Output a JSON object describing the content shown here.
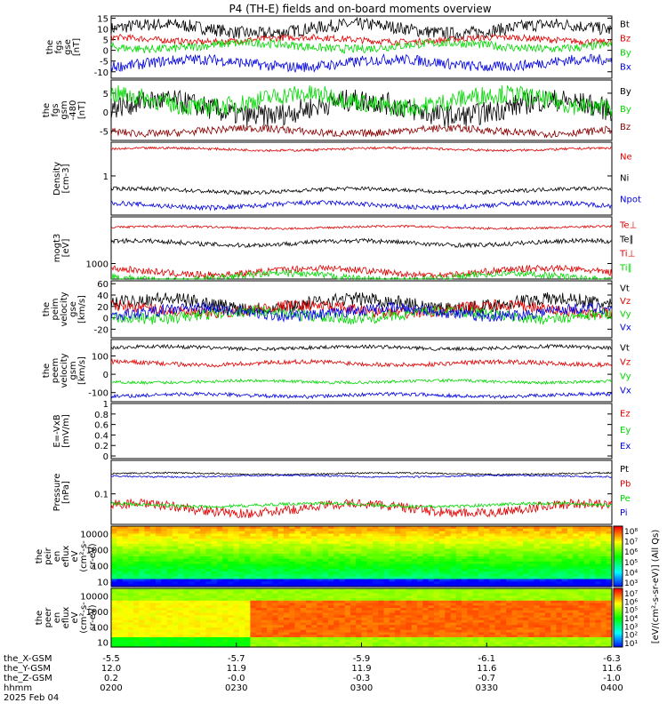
{
  "title": "P4 (TH-E) fields and on-board moments overview",
  "colors": {
    "black": "#000000",
    "red": "#e00000",
    "green": "#00d800",
    "blue": "#0000e0",
    "darkred": "#8b0000"
  },
  "chart_data": [
    {
      "id": "p1",
      "type": "line",
      "ylabel": [
        "the",
        "fgs",
        "gse",
        "[nT]"
      ],
      "ylim": [
        -13,
        16
      ],
      "yticks": [
        15,
        10,
        5,
        0,
        -5,
        -10
      ],
      "series": [
        {
          "name": "Bt",
          "color": "black",
          "level": 10,
          "amp": 3
        },
        {
          "name": "Bz",
          "color": "red",
          "level": 5,
          "amp": 1.5
        },
        {
          "name": "By",
          "color": "green",
          "level": 2,
          "amp": 2
        },
        {
          "name": "Bx",
          "color": "blue",
          "level": -6,
          "amp": 2.5
        }
      ]
    },
    {
      "id": "p2",
      "type": "line",
      "ylabel": [
        "the",
        "fgs",
        "gsm",
        "-480",
        "[nT]"
      ],
      "ylim": [
        -7.5,
        8.5
      ],
      "yticks": [
        5,
        0,
        -5
      ],
      "series": [
        {
          "name": "By",
          "color": "black",
          "level": 1,
          "amp": 3
        },
        {
          "name": "By",
          "color": "green",
          "level": 3,
          "amp": 2.5
        },
        {
          "name": "Bz",
          "color": "darkred",
          "level": -5,
          "amp": 1
        }
      ]
    },
    {
      "id": "p3",
      "type": "line",
      "ylabel": [
        "Density",
        "[cm-3]"
      ],
      "ylim": [
        0.2,
        4
      ],
      "log": true,
      "yticks": [
        1
      ],
      "series": [
        {
          "name": "Ne",
          "color": "red",
          "level": 3,
          "amp": 0.05
        },
        {
          "name": "Ni",
          "color": "black",
          "level": 0.55,
          "amp": 0.08
        },
        {
          "name": "Npot",
          "color": "blue",
          "level": 0.3,
          "amp": 0.1
        }
      ]
    },
    {
      "id": "p4",
      "type": "line",
      "ylabel": [
        "mogt3",
        "[eV]"
      ],
      "ylim": [
        500,
        8000
      ],
      "log": true,
      "yticks": [
        1000
      ],
      "series": [
        {
          "name": "Te⊥",
          "color": "red",
          "level": 5000,
          "amp": 0.05
        },
        {
          "name": "Te∥",
          "color": "black",
          "level": 2500,
          "amp": 0.1
        },
        {
          "name": "Ti⊥",
          "color": "red",
          "level": 700,
          "amp": 0.15
        },
        {
          "name": "Ti∥",
          "color": "green",
          "level": 550,
          "amp": 0.15
        }
      ]
    },
    {
      "id": "p5",
      "type": "line",
      "ylabel": [
        "the",
        "peim",
        "velocity",
        "gse",
        "[km/s]"
      ],
      "ylim": [
        -35,
        65
      ],
      "yticks": [
        60,
        40,
        20,
        0,
        -20
      ],
      "series": [
        {
          "name": "Vt",
          "color": "black",
          "level": 25,
          "amp": 12
        },
        {
          "name": "Vz",
          "color": "red",
          "level": 15,
          "amp": 10
        },
        {
          "name": "Vy",
          "color": "green",
          "level": 5,
          "amp": 10
        },
        {
          "name": "Vx",
          "color": "blue",
          "level": 10,
          "amp": 10
        }
      ]
    },
    {
      "id": "p6",
      "type": "line",
      "ylabel": [
        "the",
        "peem",
        "velocity",
        "gsm",
        "[km/s]"
      ],
      "ylim": [
        -150,
        190
      ],
      "yticks": [
        100,
        0,
        -100
      ],
      "series": [
        {
          "name": "Vt",
          "color": "black",
          "level": 145,
          "amp": 10
        },
        {
          "name": "Vz",
          "color": "red",
          "level": 60,
          "amp": 12
        },
        {
          "name": "Vy",
          "color": "green",
          "level": -40,
          "amp": 8
        },
        {
          "name": "Vx",
          "color": "blue",
          "level": -115,
          "amp": 10
        }
      ]
    },
    {
      "id": "p7",
      "type": "line",
      "ylabel": [
        "E=-VxB",
        "[mV/m]"
      ],
      "ylim": [
        -0.05,
        1.0
      ],
      "yticks": [
        1.0,
        0.8,
        0.6,
        0.4,
        0.2,
        0.0
      ],
      "series": [
        {
          "name": "Ez",
          "color": "red"
        },
        {
          "name": "Ey",
          "color": "green"
        },
        {
          "name": "Ex",
          "color": "blue"
        }
      ]
    },
    {
      "id": "p8",
      "type": "line",
      "ylabel": [
        "Pressure",
        "[nPa]"
      ],
      "ylim": [
        0.015,
        0.8
      ],
      "log": true,
      "yticks": [
        0.1
      ],
      "series": [
        {
          "name": "Pt",
          "color": "black",
          "level": 0.35,
          "amp": 0.05
        },
        {
          "name": "Pb",
          "color": "red",
          "level": 0.04,
          "amp": 0.3
        },
        {
          "name": "Pe",
          "color": "green",
          "level": 0.05,
          "amp": 0.1
        },
        {
          "name": "Pi",
          "color": "blue",
          "level": 0.3,
          "amp": 0.05
        }
      ]
    },
    {
      "id": "s1",
      "type": "heatmap",
      "ylabel": [
        "the",
        "peir",
        "en",
        "eflux",
        "eV",
        "(cm²-s-",
        "sr-eV)"
      ],
      "ylim": [
        5,
        30000
      ],
      "log": true,
      "yticks": [
        10000,
        1000,
        100,
        10
      ],
      "ytick_labels": [
        "10000",
        "1000",
        "100",
        "10"
      ]
    },
    {
      "id": "s2",
      "type": "heatmap",
      "ylabel": [
        "the",
        "peer",
        "en",
        "eflux",
        "eV",
        "(cm²-s-",
        "sr-eV)"
      ],
      "ylim": [
        5,
        30000
      ],
      "log": true,
      "yticks": [
        10000,
        1000,
        100,
        10
      ],
      "ytick_labels": [
        "10000",
        "1000",
        "100",
        "10"
      ]
    }
  ],
  "colorbar": {
    "label": "[eV/(cm²-s-sr-eV)] (All Qs)",
    "top_ticks": [
      "10⁸",
      "10⁷",
      "10⁶",
      "10⁵",
      "10⁴",
      "10³"
    ],
    "bottom_ticks": [
      "10⁷",
      "10⁶",
      "10⁵",
      "10⁴",
      "10³",
      "10²",
      "10¹"
    ]
  },
  "x_axis": {
    "tick_labels": {
      "row_labels": [
        "the_X-GSM",
        "the_Y-GSM",
        "the_Z-GSM",
        "hhmm",
        "2025 Feb 04"
      ],
      "cols": [
        [
          "-5.5",
          "12.0",
          "0.2",
          "0200"
        ],
        [
          "-5.7",
          "11.9",
          "-0.0",
          "0230"
        ],
        [
          "-5.9",
          "11.9",
          "-0.3",
          "0300"
        ],
        [
          "-6.1",
          "11.6",
          "-0.7",
          "0330"
        ],
        [
          "-6.3",
          "11.6",
          "-1.0",
          "0400"
        ]
      ]
    }
  }
}
